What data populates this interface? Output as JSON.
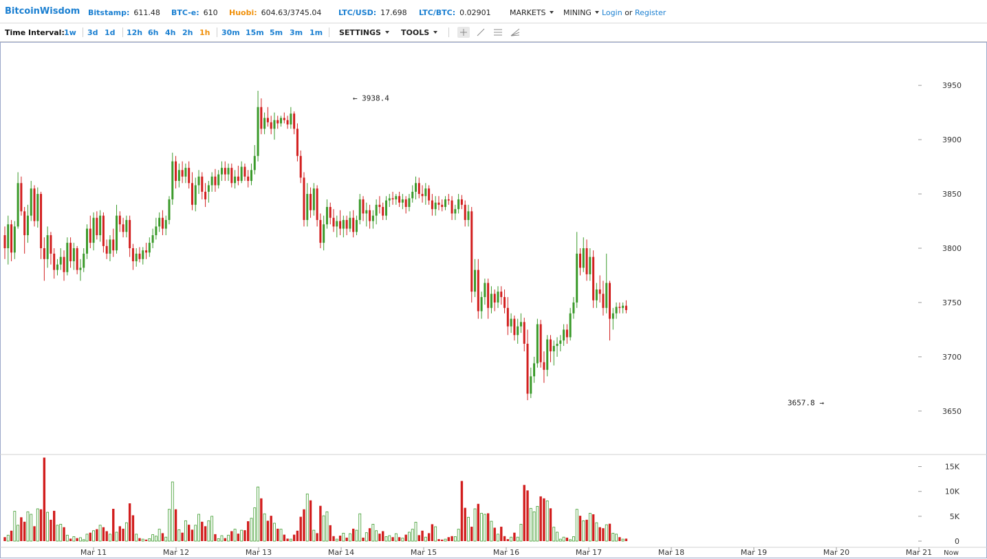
{
  "header": {
    "logo": "BitcoinWisdom",
    "tickers": [
      {
        "label": "Bitstamp:",
        "value": "611.48",
        "color": "#1a7fd1"
      },
      {
        "label": "BTC-e:",
        "value": "610",
        "color": "#1a7fd1"
      },
      {
        "label": "Huobi:",
        "value": "604.63/3745.04",
        "color": "#f0900a"
      },
      {
        "label": "LTC/USD:",
        "value": "17.698",
        "color": "#1a7fd1"
      },
      {
        "label": "LTC/BTC:",
        "value": "0.02901",
        "color": "#1a7fd1"
      }
    ],
    "menus": [
      "MARKETS",
      "MINING"
    ],
    "login": "Login",
    "or": "or",
    "register": "Register"
  },
  "toolbar": {
    "label": "Time Interval:",
    "intervals": [
      "1w",
      "3d",
      "1d",
      "12h",
      "6h",
      "4h",
      "2h",
      "1h",
      "30m",
      "15m",
      "5m",
      "3m",
      "1m"
    ],
    "active_interval": "1h",
    "settings": "SETTINGS",
    "tools": "TOOLS",
    "tool_icons": [
      "crosshair-icon",
      "trend-line-icon",
      "horizontal-lines-icon",
      "fan-icon"
    ]
  },
  "chart_data": {
    "type": "candlestick",
    "colors": {
      "up": "#3a9a2a",
      "down": "#d21e1e"
    },
    "price_axis": {
      "ticks": [
        3650,
        3700,
        3750,
        3800,
        3850,
        3900,
        3950
      ],
      "range": [
        3610,
        3990
      ]
    },
    "volume_axis": {
      "ticks": [
        0,
        5000,
        10000,
        15000
      ],
      "tick_labels": [
        "0",
        "5K",
        "10K",
        "15K"
      ],
      "range": [
        0,
        17500
      ]
    },
    "x_labels": [
      "Mar 11",
      "Mar 12",
      "Mar 13",
      "Mar 14",
      "Mar 15",
      "Mar 16",
      "Mar 17",
      "Mar 18",
      "Mar 19",
      "Mar 20",
      "Mar 21"
    ],
    "now_label": "Now",
    "annotations": [
      {
        "text": "← 3938.4",
        "x_index": 105,
        "price": 3938.4,
        "side": "right"
      },
      {
        "text": "3657.8 →",
        "x_index": 250,
        "price": 3657.8,
        "side": "left"
      }
    ],
    "candles": [
      [
        3812,
        3820,
        3790,
        3800,
        800
      ],
      [
        3800,
        3830,
        3785,
        3822,
        1200
      ],
      [
        3822,
        3826,
        3788,
        3796,
        2100
      ],
      [
        3796,
        3825,
        3790,
        3820,
        6000
      ],
      [
        3820,
        3870,
        3818,
        3860,
        3200
      ],
      [
        3860,
        3866,
        3830,
        3834,
        4800
      ],
      [
        3834,
        3838,
        3795,
        3812,
        3900
      ],
      [
        3812,
        3840,
        3805,
        3830,
        5900
      ],
      [
        3830,
        3862,
        3825,
        3855,
        5400
      ],
      [
        3855,
        3858,
        3820,
        3825,
        3000
      ],
      [
        3825,
        3856,
        3819,
        3850,
        6500
      ],
      [
        3850,
        3852,
        3790,
        3800,
        6400
      ],
      [
        3800,
        3810,
        3770,
        3790,
        16800
      ],
      [
        3790,
        3820,
        3782,
        3812,
        5800
      ],
      [
        3812,
        3815,
        3785,
        3795,
        4300
      ],
      [
        3795,
        3800,
        3772,
        3780,
        6100
      ],
      [
        3780,
        3790,
        3775,
        3785,
        3200
      ],
      [
        3785,
        3800,
        3780,
        3792,
        3400
      ],
      [
        3792,
        3798,
        3770,
        3778,
        2800
      ],
      [
        3778,
        3810,
        3775,
        3805,
        1200
      ],
      [
        3805,
        3810,
        3782,
        3788,
        500
      ],
      [
        3788,
        3805,
        3780,
        3800,
        900
      ],
      [
        3800,
        3802,
        3776,
        3780,
        600
      ],
      [
        3780,
        3790,
        3770,
        3782,
        700
      ],
      [
        3782,
        3800,
        3778,
        3795,
        300
      ],
      [
        3795,
        3822,
        3790,
        3818,
        1400
      ],
      [
        3818,
        3830,
        3800,
        3805,
        1700
      ],
      [
        3805,
        3833,
        3798,
        3828,
        2100
      ],
      [
        3828,
        3834,
        3808,
        3812,
        2400
      ],
      [
        3812,
        3835,
        3806,
        3830,
        3200
      ],
      [
        3830,
        3833,
        3796,
        3802,
        2800
      ],
      [
        3802,
        3808,
        3790,
        3795,
        2000
      ],
      [
        3795,
        3812,
        3788,
        3808,
        1400
      ],
      [
        3808,
        3818,
        3792,
        3798,
        6500
      ],
      [
        3798,
        3840,
        3795,
        3830,
        1800
      ],
      [
        3830,
        3834,
        3815,
        3822,
        3000
      ],
      [
        3822,
        3828,
        3810,
        3815,
        2500
      ],
      [
        3815,
        3830,
        3810,
        3826,
        3700
      ],
      [
        3826,
        3830,
        3792,
        3800,
        7600
      ],
      [
        3800,
        3804,
        3780,
        3788,
        5200
      ],
      [
        3788,
        3800,
        3783,
        3795,
        1400
      ],
      [
        3795,
        3801,
        3787,
        3790,
        600
      ],
      [
        3790,
        3801,
        3785,
        3798,
        400
      ],
      [
        3798,
        3805,
        3790,
        3796,
        300
      ],
      [
        3796,
        3810,
        3792,
        3805,
        500
      ],
      [
        3805,
        3818,
        3800,
        3812,
        1300
      ],
      [
        3812,
        3828,
        3808,
        3820,
        1000
      ],
      [
        3820,
        3833,
        3815,
        3828,
        2400
      ],
      [
        3828,
        3835,
        3812,
        3818,
        1600
      ],
      [
        3818,
        3830,
        3812,
        3826,
        800
      ],
      [
        3826,
        3848,
        3822,
        3845,
        6400
      ],
      [
        3845,
        3888,
        3840,
        3880,
        11900
      ],
      [
        3880,
        3885,
        3855,
        3862,
        6400
      ],
      [
        3862,
        3878,
        3856,
        3872,
        2300
      ],
      [
        3872,
        3880,
        3860,
        3866,
        1700
      ],
      [
        3866,
        3878,
        3860,
        3874,
        4100
      ],
      [
        3874,
        3880,
        3855,
        3860,
        3300
      ],
      [
        3860,
        3870,
        3835,
        3840,
        2300
      ],
      [
        3840,
        3865,
        3834,
        3858,
        3200
      ],
      [
        3858,
        3872,
        3850,
        3866,
        5400
      ],
      [
        3866,
        3870,
        3845,
        3852,
        3900
      ],
      [
        3852,
        3860,
        3838,
        3845,
        3000
      ],
      [
        3852,
        3862,
        3842,
        3858,
        4100
      ],
      [
        3858,
        3870,
        3852,
        3866,
        5000
      ],
      [
        3866,
        3873,
        3852,
        3858,
        1400
      ],
      [
        3858,
        3872,
        3855,
        3868,
        500
      ],
      [
        3868,
        3880,
        3862,
        3874,
        1100
      ],
      [
        3874,
        3880,
        3862,
        3868,
        600
      ],
      [
        3868,
        3878,
        3862,
        3874,
        1200
      ],
      [
        3874,
        3878,
        3856,
        3860,
        2000
      ],
      [
        3860,
        3872,
        3855,
        3866,
        2400
      ],
      [
        3866,
        3876,
        3858,
        3862,
        1500
      ],
      [
        3862,
        3880,
        3860,
        3875,
        2200
      ],
      [
        3875,
        3878,
        3862,
        3866,
        2200
      ],
      [
        3866,
        3872,
        3856,
        3862,
        4000
      ],
      [
        3862,
        3878,
        3858,
        3872,
        4600
      ],
      [
        3872,
        3895,
        3868,
        3885,
        6700
      ],
      [
        3885,
        3945,
        3880,
        3930,
        10900
      ],
      [
        3930,
        3938,
        3905,
        3910,
        8600
      ],
      [
        3910,
        3925,
        3905,
        3920,
        5500
      ],
      [
        3920,
        3930,
        3912,
        3916,
        4100
      ],
      [
        3916,
        3922,
        3905,
        3910,
        5100
      ],
      [
        3910,
        3925,
        3900,
        3918,
        3600
      ],
      [
        3918,
        3922,
        3910,
        3915,
        2500
      ],
      [
        3915,
        3922,
        3912,
        3920,
        2400
      ],
      [
        3920,
        3925,
        3915,
        3918,
        1300
      ],
      [
        3918,
        3922,
        3910,
        3914,
        500
      ],
      [
        3914,
        3930,
        3910,
        3924,
        400
      ],
      [
        3924,
        3926,
        3905,
        3910,
        1300
      ],
      [
        3910,
        3915,
        3880,
        3885,
        2100
      ],
      [
        3885,
        3890,
        3860,
        3865,
        4900
      ],
      [
        3865,
        3870,
        3820,
        3826,
        6400
      ],
      [
        3826,
        3860,
        3820,
        3850,
        9500
      ],
      [
        3850,
        3856,
        3828,
        3835,
        8200
      ],
      [
        3835,
        3860,
        3830,
        3855,
        2200
      ],
      [
        3855,
        3858,
        3820,
        3826,
        1600
      ],
      [
        3826,
        3832,
        3800,
        3805,
        7100
      ],
      [
        3805,
        3830,
        3798,
        3822,
        5100
      ],
      [
        3822,
        3845,
        3818,
        3838,
        5900
      ],
      [
        3838,
        3842,
        3822,
        3828,
        3200
      ],
      [
        3828,
        3836,
        3815,
        3820,
        1000
      ],
      [
        3820,
        3830,
        3810,
        3825,
        400
      ],
      [
        3825,
        3835,
        3812,
        3818,
        1100
      ],
      [
        3818,
        3830,
        3810,
        3826,
        1600
      ],
      [
        3826,
        3830,
        3812,
        3818,
        700
      ],
      [
        3818,
        3834,
        3815,
        3828,
        1500
      ],
      [
        3828,
        3835,
        3810,
        3815,
        2500
      ],
      [
        3815,
        3830,
        3812,
        3826,
        2200
      ],
      [
        3826,
        3850,
        3822,
        3845,
        5500
      ],
      [
        3845,
        3848,
        3825,
        3832,
        700
      ],
      [
        3832,
        3842,
        3820,
        3835,
        1700
      ],
      [
        3835,
        3840,
        3818,
        3825,
        2600
      ],
      [
        3825,
        3835,
        3818,
        3830,
        3400
      ],
      [
        3830,
        3845,
        3822,
        3840,
        2100
      ],
      [
        3840,
        3848,
        3832,
        3838,
        1500
      ],
      [
        3838,
        3842,
        3826,
        3830,
        2000
      ],
      [
        3830,
        3848,
        3826,
        3844,
        900
      ],
      [
        3844,
        3850,
        3838,
        3846,
        1100
      ],
      [
        3846,
        3852,
        3840,
        3845,
        800
      ],
      [
        3845,
        3850,
        3840,
        3848,
        1500
      ],
      [
        3848,
        3852,
        3838,
        3842,
        800
      ],
      [
        3842,
        3850,
        3836,
        3845,
        600
      ],
      [
        3845,
        3848,
        3832,
        3838,
        1300
      ],
      [
        3838,
        3850,
        3834,
        3846,
        1800
      ],
      [
        3846,
        3858,
        3842,
        3852,
        2400
      ],
      [
        3852,
        3866,
        3845,
        3860,
        3800
      ],
      [
        3860,
        3865,
        3846,
        3850,
        1200
      ],
      [
        3850,
        3858,
        3842,
        3848,
        2100
      ],
      [
        3848,
        3860,
        3840,
        3855,
        800
      ],
      [
        3855,
        3858,
        3840,
        3844,
        1600
      ],
      [
        3844,
        3850,
        3830,
        3836,
        3400
      ],
      [
        3836,
        3848,
        3830,
        3842,
        2900
      ],
      [
        3842,
        3848,
        3835,
        3840,
        400
      ],
      [
        3840,
        3845,
        3834,
        3838,
        300
      ],
      [
        3838,
        3848,
        3835,
        3845,
        400
      ],
      [
        3845,
        3850,
        3840,
        3844,
        800
      ],
      [
        3844,
        3848,
        3826,
        3832,
        1000
      ],
      [
        3832,
        3840,
        3826,
        3836,
        900
      ],
      [
        3836,
        3850,
        3832,
        3845,
        2400
      ],
      [
        3845,
        3849,
        3836,
        3840,
        12100
      ],
      [
        3840,
        3844,
        3820,
        3826,
        6700
      ],
      [
        3826,
        3840,
        3820,
        3834,
        4800
      ],
      [
        3834,
        3838,
        3750,
        3760,
        2900
      ],
      [
        3760,
        3790,
        3755,
        3780,
        6500
      ],
      [
        3780,
        3790,
        3735,
        3742,
        7500
      ],
      [
        3742,
        3760,
        3735,
        3755,
        5600
      ],
      [
        3755,
        3772,
        3748,
        3768,
        5400
      ],
      [
        3768,
        3772,
        3735,
        3745,
        5600
      ],
      [
        3745,
        3765,
        3740,
        3758,
        4000
      ],
      [
        3758,
        3762,
        3742,
        3750,
        2700
      ],
      [
        3750,
        3765,
        3745,
        3760,
        1400
      ],
      [
        3760,
        3765,
        3748,
        3755,
        2900
      ],
      [
        3755,
        3762,
        3740,
        3745,
        1000
      ],
      [
        3745,
        3755,
        3720,
        3728,
        400
      ],
      [
        3728,
        3740,
        3722,
        3735,
        800
      ],
      [
        3735,
        3738,
        3715,
        3720,
        1700
      ],
      [
        3720,
        3735,
        3712,
        3728,
        800
      ],
      [
        3728,
        3740,
        3722,
        3732,
        3400
      ],
      [
        3732,
        3736,
        3705,
        3712,
        11300
      ],
      [
        3712,
        3725,
        3660,
        3666,
        10200
      ],
      [
        3666,
        3690,
        3662,
        3682,
        6600
      ],
      [
        3682,
        3700,
        3676,
        3694,
        5900
      ],
      [
        3694,
        3735,
        3690,
        3730,
        7000
      ],
      [
        3730,
        3734,
        3690,
        3695,
        9000
      ],
      [
        3695,
        3705,
        3676,
        3688,
        8600
      ],
      [
        3688,
        3720,
        3682,
        3716,
        8100
      ],
      [
        3716,
        3720,
        3695,
        3705,
        6600
      ],
      [
        3705,
        3715,
        3692,
        3710,
        2800
      ],
      [
        3710,
        3718,
        3700,
        3712,
        1800
      ],
      [
        3712,
        3720,
        3705,
        3715,
        400
      ],
      [
        3715,
        3730,
        3710,
        3725,
        800
      ],
      [
        3725,
        3730,
        3712,
        3718,
        700
      ],
      [
        3718,
        3745,
        3715,
        3740,
        300
      ],
      [
        3740,
        3755,
        3735,
        3750,
        900
      ],
      [
        3750,
        3815,
        3745,
        3795,
        6400
      ],
      [
        3795,
        3800,
        3775,
        3782,
        5100
      ],
      [
        3782,
        3810,
        3778,
        3800,
        4100
      ],
      [
        3800,
        3808,
        3770,
        3776,
        4300
      ],
      [
        3776,
        3800,
        3770,
        3792,
        5600
      ],
      [
        3792,
        3798,
        3745,
        3752,
        5400
      ],
      [
        3752,
        3768,
        3745,
        3762,
        3700
      ],
      [
        3762,
        3775,
        3750,
        3758,
        2800
      ],
      [
        3758,
        3770,
        3738,
        3745,
        2600
      ],
      [
        3745,
        3795,
        3740,
        3768,
        3300
      ],
      [
        3768,
        3770,
        3715,
        3735,
        3500
      ],
      [
        3735,
        3745,
        3725,
        3740,
        1600
      ],
      [
        3740,
        3750,
        3735,
        3746,
        1400
      ],
      [
        3746,
        3750,
        3740,
        3745,
        800
      ],
      [
        3745,
        3750,
        3740,
        3747,
        400
      ],
      [
        3747,
        3752,
        3740,
        3743,
        500
      ]
    ]
  }
}
